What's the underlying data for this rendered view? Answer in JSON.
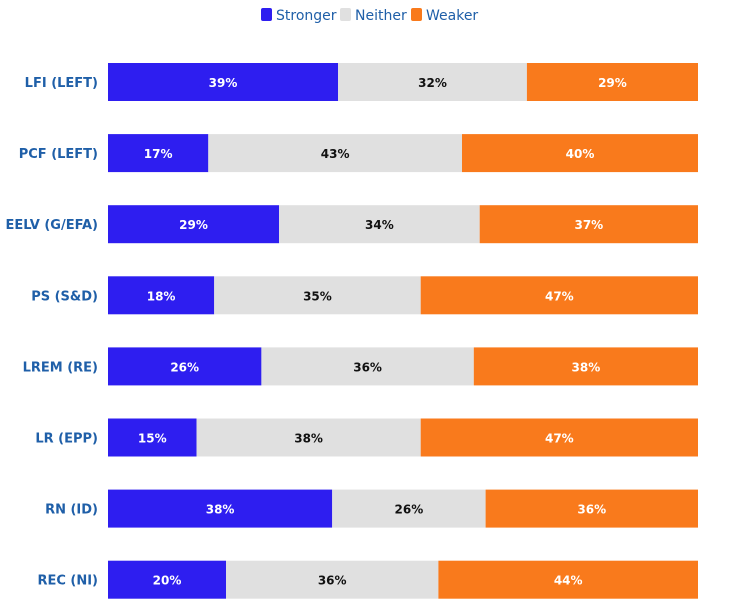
{
  "chart_data": {
    "type": "bar",
    "orientation": "horizontal",
    "stacked": true,
    "percent": true,
    "legend_position": "top-center",
    "grid": false,
    "xlim": [
      0,
      100
    ],
    "categories": [
      "LFI (LEFT)",
      "PCF (LEFT)",
      "EELV (G/EFA)",
      "PS (S&D)",
      "LREM (RE)",
      "LR (EPP)",
      "RN (ID)",
      "REC (NI)"
    ],
    "series": [
      {
        "name": "Stronger",
        "color": "#2e1ef0",
        "label_color": "#ffffff",
        "values": [
          39,
          17,
          29,
          18,
          26,
          15,
          38,
          20
        ]
      },
      {
        "name": "Neither",
        "color": "#e0e0e0",
        "label_color": "#111111",
        "values": [
          32,
          43,
          34,
          35,
          36,
          38,
          26,
          36
        ]
      },
      {
        "name": "Weaker",
        "color": "#f97a1c",
        "label_color": "#ffffff",
        "values": [
          29,
          40,
          37,
          47,
          38,
          47,
          36,
          44
        ]
      }
    ]
  }
}
